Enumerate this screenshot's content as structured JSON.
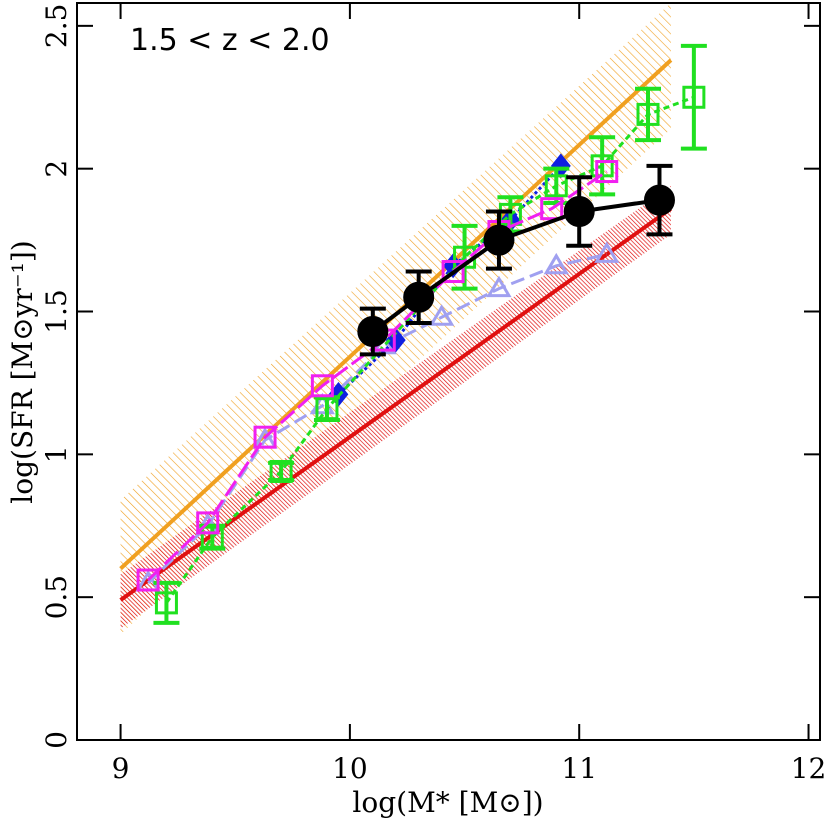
{
  "chart_data": {
    "type": "scatter",
    "annotation": "1.5 < z < 2.0",
    "xlabel": "log(M* [M⊙])",
    "ylabel": "log(SFR [M⊙yr⁻¹])",
    "xlim": [
      8.81,
      12.05
    ],
    "ylim": [
      0,
      2.58
    ],
    "xticks": [
      9,
      10,
      11,
      12
    ],
    "yticks": [
      0,
      0.5,
      1,
      1.5,
      2,
      2.5
    ],
    "bands": [
      {
        "color": "#f0a020",
        "x": [
          9,
          11.4
        ],
        "values": [
          0.6,
          2.38
        ],
        "lower": [
          0.37,
          2.14
        ],
        "upper": [
          0.84,
          2.58
        ]
      },
      {
        "color": "#e01010",
        "x": [
          9,
          11.4
        ],
        "values": [
          0.49,
          1.86
        ],
        "lower": [
          0.39,
          1.77
        ],
        "upper": [
          0.58,
          1.94
        ]
      }
    ],
    "series": [
      {
        "color": "#a0a0f0",
        "marker": "triangle",
        "dash": "14 6",
        "x": [
          9.12,
          9.38,
          9.63,
          9.88,
          10.15,
          10.4,
          10.65,
          10.9,
          11.12
        ],
        "values": [
          0.55,
          0.75,
          1.05,
          1.17,
          1.38,
          1.48,
          1.58,
          1.66,
          1.7
        ]
      },
      {
        "color": "#1020e0",
        "marker": "diamond",
        "dash": "3 3",
        "x": [
          9.95,
          10.2,
          10.45,
          10.7,
          10.92
        ],
        "values": [
          1.21,
          1.4,
          1.66,
          1.82,
          2.01
        ]
      },
      {
        "color": "#20e020",
        "marker": "square",
        "dash": "6 4",
        "x": [
          9.2,
          9.4,
          9.7,
          9.9,
          10.5,
          10.7,
          10.9,
          11.1,
          11.3,
          11.5
        ],
        "values": [
          0.48,
          0.71,
          0.94,
          1.16,
          1.69,
          1.84,
          1.94,
          2.01,
          2.19,
          2.25
        ],
        "errors": [
          0.07,
          0.04,
          0.03,
          0.04,
          0.11,
          0.06,
          0.06,
          0.1,
          0.09,
          0.18
        ]
      },
      {
        "color": "#f020f0",
        "marker": "square",
        "dash": "18 5",
        "x": [
          9.12,
          9.38,
          9.63,
          9.88,
          10.15,
          10.45,
          10.65,
          10.88,
          11.12
        ],
        "values": [
          0.56,
          0.76,
          1.06,
          1.24,
          1.4,
          1.64,
          1.78,
          1.86,
          1.99
        ]
      },
      {
        "color": "#000000",
        "marker": "circle",
        "dash": "",
        "x": [
          10.1,
          10.3,
          10.65,
          11,
          11.35
        ],
        "values": [
          1.43,
          1.55,
          1.75,
          1.85,
          1.89
        ],
        "errors": [
          0.08,
          0.09,
          0.1,
          0.12,
          0.12
        ]
      }
    ]
  }
}
